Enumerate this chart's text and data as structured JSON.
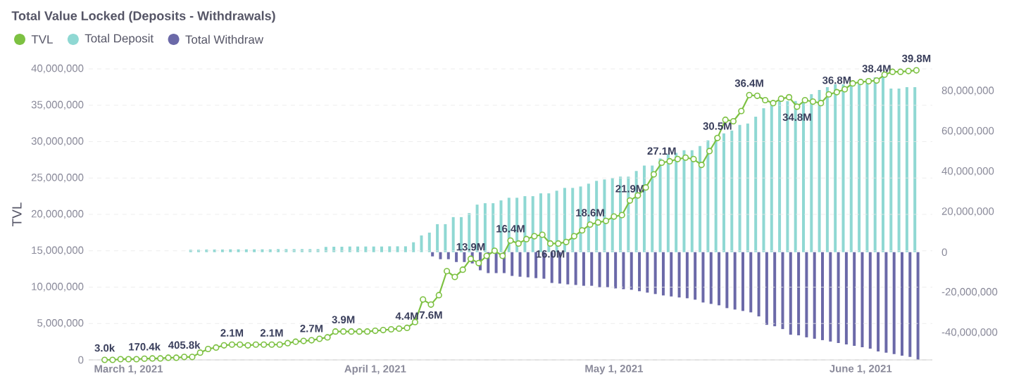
{
  "chart_data": {
    "type": "bar",
    "title": "Total Value Locked (Deposits - Withdrawals)",
    "ylabel": "TVL",
    "x": [
      "2021-02-26",
      "2021-02-27",
      "2021-02-28",
      "2021-03-01",
      "2021-03-02",
      "2021-03-03",
      "2021-03-04",
      "2021-03-05",
      "2021-03-06",
      "2021-03-07",
      "2021-03-08",
      "2021-03-09",
      "2021-03-10",
      "2021-03-11",
      "2021-03-12",
      "2021-03-13",
      "2021-03-14",
      "2021-03-15",
      "2021-03-16",
      "2021-03-17",
      "2021-03-18",
      "2021-03-19",
      "2021-03-20",
      "2021-03-21",
      "2021-03-22",
      "2021-03-23",
      "2021-03-24",
      "2021-03-25",
      "2021-03-26",
      "2021-03-27",
      "2021-03-28",
      "2021-03-29",
      "2021-03-30",
      "2021-03-31",
      "2021-04-01",
      "2021-04-02",
      "2021-04-03",
      "2021-04-04",
      "2021-04-05",
      "2021-04-06",
      "2021-04-07",
      "2021-04-08",
      "2021-04-09",
      "2021-04-10",
      "2021-04-11",
      "2021-04-12",
      "2021-04-13",
      "2021-04-14",
      "2021-04-15",
      "2021-04-16",
      "2021-04-17",
      "2021-04-18",
      "2021-04-19",
      "2021-04-20",
      "2021-04-21",
      "2021-04-22",
      "2021-04-23",
      "2021-04-24",
      "2021-04-25",
      "2021-04-26",
      "2021-04-27",
      "2021-04-28",
      "2021-04-29",
      "2021-04-30",
      "2021-05-01",
      "2021-05-02",
      "2021-05-03",
      "2021-05-04",
      "2021-05-05",
      "2021-05-06",
      "2021-05-07",
      "2021-05-08",
      "2021-05-09",
      "2021-05-10",
      "2021-05-11",
      "2021-05-12",
      "2021-05-13",
      "2021-05-14",
      "2021-05-15",
      "2021-05-16",
      "2021-05-17",
      "2021-05-18",
      "2021-05-19",
      "2021-05-20",
      "2021-05-21",
      "2021-05-22",
      "2021-05-23",
      "2021-05-24",
      "2021-05-25",
      "2021-05-26",
      "2021-05-27",
      "2021-05-28",
      "2021-05-29",
      "2021-05-30",
      "2021-05-31",
      "2021-06-01",
      "2021-06-02",
      "2021-06-03",
      "2021-06-04",
      "2021-06-05",
      "2021-06-06",
      "2021-06-07",
      "2021-06-08"
    ],
    "xlim": [
      "2021-02-24",
      "2021-06-10"
    ],
    "xticks": [
      {
        "value": "2021-03-01",
        "label": "March 1, 2021"
      },
      {
        "value": "2021-04-01",
        "label": "April 1, 2021"
      },
      {
        "value": "2021-05-01",
        "label": "May 1, 2021"
      },
      {
        "value": "2021-06-01",
        "label": "June 1, 2021"
      }
    ],
    "ylim": [
      0,
      40000000
    ],
    "yticks": [
      0,
      {
        "value": 5000000,
        "label": "5,000,000"
      },
      {
        "value": 10000000,
        "label": "10,000,000"
      },
      {
        "value": 15000000,
        "label": "15,000,000"
      },
      {
        "value": 20000000,
        "label": "20,000,000"
      },
      {
        "value": 25000000,
        "label": "25,000,000"
      },
      {
        "value": 30000000,
        "label": "30,000,000"
      },
      {
        "value": 35000000,
        "label": "35,000,000"
      },
      {
        "value": 40000000,
        "label": "40,000,000"
      }
    ],
    "y2lim": [
      -53500000,
      91000000
    ],
    "y2ticks": [
      {
        "value": -40000000,
        "label": "-40,000,000"
      },
      {
        "value": -20000000,
        "label": "-20,000,000"
      },
      0,
      {
        "value": 20000000,
        "label": "20,000,000"
      },
      {
        "value": 40000000,
        "label": "40,000,000"
      },
      {
        "value": 60000000,
        "label": "60,000,000"
      },
      {
        "value": 80000000,
        "label": "80,000,000"
      }
    ],
    "grid": "y",
    "legend": "top left",
    "series": [
      {
        "name": "TVL",
        "type": "line",
        "color": "#7dc142",
        "marker": "circle",
        "values": [
          3000,
          0,
          100000,
          100000,
          100000,
          170400,
          200000,
          200000,
          300000,
          300000,
          405800,
          400000,
          1000000,
          1500000,
          1700000,
          2000000,
          2100000,
          2100000,
          2000000,
          2100000,
          2100000,
          2100000,
          2100000,
          2300000,
          2500000,
          2600000,
          2700000,
          2900000,
          3100000,
          3900000,
          3900000,
          3900000,
          3900000,
          3900000,
          4000000,
          4100000,
          4200000,
          4300000,
          4400000,
          5200000,
          8300000,
          7600000,
          8900000,
          12200000,
          11400000,
          12400000,
          13900000,
          13300000,
          14300000,
          15000000,
          14300000,
          16400000,
          16000000,
          16600000,
          17000000,
          17200000,
          16000000,
          16000000,
          16200000,
          17000000,
          17800000,
          18600000,
          18900000,
          19100000,
          19700000,
          19900000,
          21900000,
          22600000,
          23700000,
          25500000,
          27100000,
          27300000,
          27600000,
          27800000,
          27600000,
          26800000,
          28700000,
          30500000,
          33000000,
          32800000,
          34200000,
          36400000,
          36300000,
          35700000,
          35300000,
          35900000,
          36100000,
          34800000,
          35700000,
          35500000,
          35300000,
          36500000,
          36800000,
          37200000,
          38000000,
          38200000,
          38300000,
          38400000,
          39200000,
          39600000,
          39600000,
          39700000,
          39800000
        ],
        "value_labels": [
          "3.0k",
          null,
          null,
          null,
          null,
          "170.4k",
          null,
          null,
          null,
          null,
          "405.8k",
          null,
          null,
          null,
          null,
          null,
          "2.1M",
          null,
          null,
          null,
          null,
          "2.1M",
          null,
          null,
          null,
          null,
          "2.7M",
          null,
          null,
          null,
          "3.9M",
          null,
          null,
          null,
          null,
          null,
          null,
          null,
          "4.4M",
          null,
          null,
          "7.6M",
          null,
          null,
          null,
          null,
          "13.9M",
          null,
          null,
          null,
          null,
          "16.4M",
          null,
          null,
          null,
          null,
          "16.0M",
          null,
          null,
          null,
          null,
          "18.6M",
          null,
          null,
          null,
          null,
          "21.9M",
          null,
          null,
          null,
          "27.1M",
          null,
          null,
          null,
          null,
          null,
          null,
          "30.5M",
          null,
          null,
          null,
          "36.4M",
          null,
          null,
          null,
          null,
          null,
          "34.8M",
          null,
          null,
          null,
          null,
          "36.8M",
          null,
          null,
          null,
          null,
          "38.4M",
          null,
          null,
          null,
          null,
          "39.8M"
        ]
      },
      {
        "name": "Total Deposit",
        "axis": "y2",
        "color": "#8fd8d3",
        "values": [
          null,
          null,
          null,
          null,
          null,
          null,
          null,
          null,
          null,
          null,
          null,
          1200000,
          1200000,
          1300000,
          1300000,
          1300000,
          1400000,
          1400000,
          1400000,
          1400000,
          1400000,
          1400000,
          1500000,
          1500000,
          1500000,
          1500000,
          1500000,
          1500000,
          2600000,
          2700000,
          2700000,
          2800000,
          2800000,
          2800000,
          2800000,
          2800000,
          2900000,
          2900000,
          2900000,
          4900000,
          8300000,
          9700000,
          13900000,
          13900000,
          17400000,
          17400000,
          19400000,
          23600000,
          24300000,
          24300000,
          25700000,
          27000000,
          27000000,
          27800000,
          27800000,
          29200000,
          29200000,
          30500000,
          31900000,
          31900000,
          32600000,
          34000000,
          35400000,
          36100000,
          36800000,
          37500000,
          37500000,
          40300000,
          43000000,
          43000000,
          46500000,
          48600000,
          49300000,
          50600000,
          50600000,
          52700000,
          55500000,
          57600000,
          59000000,
          60400000,
          63200000,
          63900000,
          67300000,
          71500000,
          73600000,
          75000000,
          75000000,
          75000000,
          76300000,
          78400000,
          80500000,
          81900000,
          83300000,
          83300000,
          84000000,
          85400000,
          86100000,
          86800000,
          87500000,
          81200000,
          81200000,
          81900000,
          81900000
        ]
      },
      {
        "name": "Total Withdraw",
        "axis": "y2",
        "color": "#6b69a8",
        "values": [
          null,
          null,
          null,
          null,
          null,
          null,
          null,
          null,
          null,
          null,
          null,
          null,
          null,
          null,
          null,
          null,
          null,
          null,
          null,
          null,
          null,
          null,
          null,
          null,
          null,
          null,
          null,
          null,
          null,
          null,
          null,
          null,
          null,
          null,
          null,
          null,
          null,
          null,
          null,
          null,
          null,
          -2100000,
          -3500000,
          -3500000,
          -4900000,
          -4900000,
          -5600000,
          -9000000,
          -10400000,
          -10400000,
          -10400000,
          -11800000,
          -12200000,
          -12500000,
          -12900000,
          -13200000,
          -15300000,
          -15600000,
          -16000000,
          -16300000,
          -16700000,
          -16700000,
          -17400000,
          -17400000,
          -18000000,
          -18400000,
          -18700000,
          -19400000,
          -20100000,
          -20800000,
          -21500000,
          -22000000,
          -22500000,
          -22900000,
          -23600000,
          -25000000,
          -25700000,
          -26400000,
          -27800000,
          -28500000,
          -29200000,
          -29900000,
          -31900000,
          -36100000,
          -36800000,
          -38200000,
          -41000000,
          -41300000,
          -42300000,
          -43000000,
          -43700000,
          -44400000,
          -45100000,
          -45800000,
          -46500000,
          -47200000,
          -47900000,
          -49300000,
          -49900000,
          -50600000,
          -51400000,
          -52000000,
          -53400000
        ]
      }
    ]
  }
}
